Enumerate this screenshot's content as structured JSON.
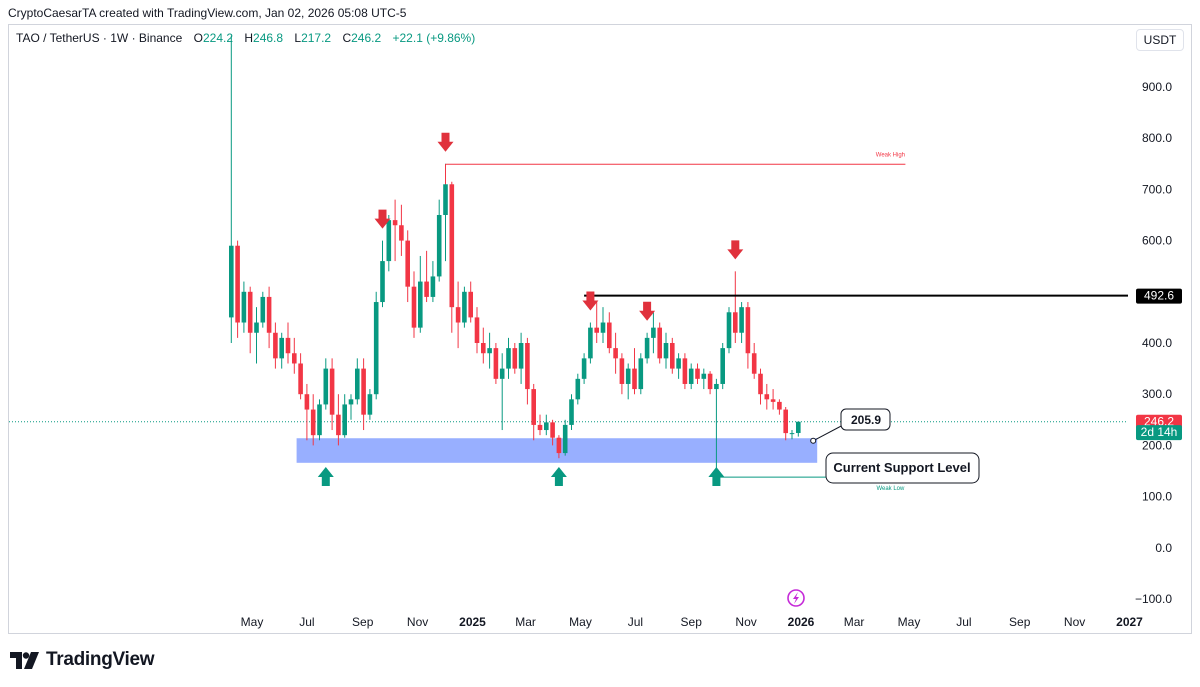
{
  "header": {
    "attribution": "CryptoCaesarTA created with TradingView.com, Jan 02, 2026 05:08 UTC-5"
  },
  "symbol_bar": {
    "symbol": "TAO / TetherUS · 1W · Binance",
    "open_label": "O",
    "open_value": "224.2",
    "high_label": "H",
    "high_value": "246.8",
    "low_label": "L",
    "low_value": "217.2",
    "close_label": "C",
    "close_value": "246.2",
    "change": "+22.1 (+9.86%)"
  },
  "currency_button": "USDT",
  "footer": {
    "brand": "TradingView"
  },
  "colors": {
    "up": "#089981",
    "down": "#f23645",
    "support_zone": "#8fa8ff",
    "resistance_line": "#000000",
    "weak_high": "#f23645",
    "weak_low": "#089981"
  },
  "chart_data": {
    "type": "candlestick",
    "price_axis": {
      "ticks": [
        {
          "label": "900.0",
          "value": 900
        },
        {
          "label": "800.0",
          "value": 800
        },
        {
          "label": "700.0",
          "value": 700
        },
        {
          "label": "600.0",
          "value": 600
        },
        {
          "label": "400.0",
          "value": 400
        },
        {
          "label": "300.0",
          "value": 300
        },
        {
          "label": "200.0",
          "value": 200
        },
        {
          "label": "100.0",
          "value": 100
        },
        {
          "label": "0.0",
          "value": 0
        },
        {
          "label": "−100.0",
          "value": -100
        }
      ],
      "badges": [
        {
          "label": "492.6",
          "value": 492.6,
          "style": "black"
        },
        {
          "label": "246.2",
          "value": 246.2,
          "style": "red"
        },
        {
          "label": "2d 14h",
          "value": 226,
          "style": "green"
        }
      ]
    },
    "time_axis": {
      "ticks": [
        {
          "label": "May",
          "date": "2024-05"
        },
        {
          "label": "Jul",
          "date": "2024-07"
        },
        {
          "label": "Sep",
          "date": "2024-09"
        },
        {
          "label": "Nov",
          "date": "2024-11"
        },
        {
          "label": "2025",
          "date": "2025-01",
          "bold": true
        },
        {
          "label": "Mar",
          "date": "2025-03"
        },
        {
          "label": "May",
          "date": "2025-05"
        },
        {
          "label": "Jul",
          "date": "2025-07"
        },
        {
          "label": "Sep",
          "date": "2025-09"
        },
        {
          "label": "Nov",
          "date": "2025-11"
        },
        {
          "label": "2026",
          "date": "2026-01",
          "bold": true
        },
        {
          "label": "Mar",
          "date": "2026-03"
        },
        {
          "label": "May",
          "date": "2026-05"
        },
        {
          "label": "Jul",
          "date": "2026-07"
        },
        {
          "label": "Sep",
          "date": "2026-09"
        },
        {
          "label": "Nov",
          "date": "2026-11"
        },
        {
          "label": "2027",
          "date": "2027-01",
          "bold": true
        }
      ]
    },
    "candles": [
      {
        "date": "2024-04-08",
        "o": 450,
        "h": 1000,
        "l": 400,
        "c": 590
      },
      {
        "date": "2024-04-15",
        "o": 590,
        "h": 600,
        "l": 410,
        "c": 440
      },
      {
        "date": "2024-04-22",
        "o": 440,
        "h": 520,
        "l": 420,
        "c": 500
      },
      {
        "date": "2024-04-29",
        "o": 500,
        "h": 510,
        "l": 380,
        "c": 420
      },
      {
        "date": "2024-05-06",
        "o": 420,
        "h": 470,
        "l": 360,
        "c": 440
      },
      {
        "date": "2024-05-13",
        "o": 440,
        "h": 500,
        "l": 430,
        "c": 490
      },
      {
        "date": "2024-05-20",
        "o": 490,
        "h": 510,
        "l": 390,
        "c": 420
      },
      {
        "date": "2024-05-27",
        "o": 420,
        "h": 440,
        "l": 350,
        "c": 370
      },
      {
        "date": "2024-06-03",
        "o": 370,
        "h": 420,
        "l": 350,
        "c": 410
      },
      {
        "date": "2024-06-10",
        "o": 410,
        "h": 440,
        "l": 360,
        "c": 380
      },
      {
        "date": "2024-06-17",
        "o": 380,
        "h": 410,
        "l": 340,
        "c": 360
      },
      {
        "date": "2024-06-24",
        "o": 360,
        "h": 380,
        "l": 290,
        "c": 300
      },
      {
        "date": "2024-07-01",
        "o": 300,
        "h": 320,
        "l": 210,
        "c": 270
      },
      {
        "date": "2024-07-08",
        "o": 270,
        "h": 300,
        "l": 200,
        "c": 220
      },
      {
        "date": "2024-07-15",
        "o": 220,
        "h": 290,
        "l": 210,
        "c": 280
      },
      {
        "date": "2024-07-22",
        "o": 280,
        "h": 370,
        "l": 270,
        "c": 350
      },
      {
        "date": "2024-07-29",
        "o": 350,
        "h": 370,
        "l": 230,
        "c": 260
      },
      {
        "date": "2024-08-05",
        "o": 260,
        "h": 300,
        "l": 200,
        "c": 220
      },
      {
        "date": "2024-08-12",
        "o": 220,
        "h": 300,
        "l": 215,
        "c": 280
      },
      {
        "date": "2024-08-19",
        "o": 280,
        "h": 300,
        "l": 250,
        "c": 290
      },
      {
        "date": "2024-08-26",
        "o": 290,
        "h": 370,
        "l": 280,
        "c": 350
      },
      {
        "date": "2024-09-02",
        "o": 350,
        "h": 370,
        "l": 230,
        "c": 260
      },
      {
        "date": "2024-09-09",
        "o": 260,
        "h": 310,
        "l": 250,
        "c": 300
      },
      {
        "date": "2024-09-16",
        "o": 300,
        "h": 500,
        "l": 290,
        "c": 480
      },
      {
        "date": "2024-09-23",
        "o": 480,
        "h": 600,
        "l": 470,
        "c": 560
      },
      {
        "date": "2024-09-30",
        "o": 560,
        "h": 650,
        "l": 540,
        "c": 640
      },
      {
        "date": "2024-10-07",
        "o": 640,
        "h": 680,
        "l": 560,
        "c": 630
      },
      {
        "date": "2024-10-14",
        "o": 630,
        "h": 670,
        "l": 570,
        "c": 600
      },
      {
        "date": "2024-10-21",
        "o": 600,
        "h": 620,
        "l": 480,
        "c": 510
      },
      {
        "date": "2024-10-28",
        "o": 510,
        "h": 540,
        "l": 410,
        "c": 430
      },
      {
        "date": "2024-11-04",
        "o": 430,
        "h": 570,
        "l": 420,
        "c": 520
      },
      {
        "date": "2024-11-11",
        "o": 520,
        "h": 580,
        "l": 480,
        "c": 490
      },
      {
        "date": "2024-11-18",
        "o": 490,
        "h": 560,
        "l": 480,
        "c": 530
      },
      {
        "date": "2024-11-25",
        "o": 530,
        "h": 680,
        "l": 520,
        "c": 650
      },
      {
        "date": "2024-12-02",
        "o": 650,
        "h": 750,
        "l": 560,
        "c": 710
      },
      {
        "date": "2024-12-09",
        "o": 710,
        "h": 715,
        "l": 420,
        "c": 470
      },
      {
        "date": "2024-12-16",
        "o": 470,
        "h": 520,
        "l": 390,
        "c": 440
      },
      {
        "date": "2024-12-23",
        "o": 440,
        "h": 510,
        "l": 430,
        "c": 500
      },
      {
        "date": "2024-12-30",
        "o": 500,
        "h": 520,
        "l": 440,
        "c": 450
      },
      {
        "date": "2025-01-06",
        "o": 450,
        "h": 470,
        "l": 380,
        "c": 400
      },
      {
        "date": "2025-01-13",
        "o": 400,
        "h": 430,
        "l": 360,
        "c": 380
      },
      {
        "date": "2025-01-20",
        "o": 380,
        "h": 420,
        "l": 350,
        "c": 390
      },
      {
        "date": "2025-01-27",
        "o": 390,
        "h": 400,
        "l": 320,
        "c": 330
      },
      {
        "date": "2025-02-03",
        "o": 330,
        "h": 380,
        "l": 230,
        "c": 350
      },
      {
        "date": "2025-02-10",
        "o": 350,
        "h": 410,
        "l": 330,
        "c": 390
      },
      {
        "date": "2025-02-17",
        "o": 390,
        "h": 400,
        "l": 340,
        "c": 350
      },
      {
        "date": "2025-02-24",
        "o": 350,
        "h": 420,
        "l": 320,
        "c": 400
      },
      {
        "date": "2025-03-03",
        "o": 400,
        "h": 410,
        "l": 280,
        "c": 310
      },
      {
        "date": "2025-03-10",
        "o": 310,
        "h": 320,
        "l": 210,
        "c": 240
      },
      {
        "date": "2025-03-17",
        "o": 240,
        "h": 260,
        "l": 220,
        "c": 230
      },
      {
        "date": "2025-03-24",
        "o": 230,
        "h": 260,
        "l": 220,
        "c": 245
      },
      {
        "date": "2025-03-31",
        "o": 245,
        "h": 250,
        "l": 200,
        "c": 215
      },
      {
        "date": "2025-04-07",
        "o": 215,
        "h": 220,
        "l": 175,
        "c": 185
      },
      {
        "date": "2025-04-14",
        "o": 185,
        "h": 250,
        "l": 180,
        "c": 240
      },
      {
        "date": "2025-04-21",
        "o": 240,
        "h": 300,
        "l": 230,
        "c": 290
      },
      {
        "date": "2025-04-28",
        "o": 290,
        "h": 340,
        "l": 280,
        "c": 330
      },
      {
        "date": "2025-05-05",
        "o": 330,
        "h": 380,
        "l": 320,
        "c": 370
      },
      {
        "date": "2025-05-12",
        "o": 370,
        "h": 440,
        "l": 360,
        "c": 430
      },
      {
        "date": "2025-05-19",
        "o": 430,
        "h": 480,
        "l": 400,
        "c": 420
      },
      {
        "date": "2025-05-26",
        "o": 420,
        "h": 470,
        "l": 400,
        "c": 440
      },
      {
        "date": "2025-06-02",
        "o": 440,
        "h": 460,
        "l": 380,
        "c": 390
      },
      {
        "date": "2025-06-09",
        "o": 390,
        "h": 420,
        "l": 340,
        "c": 370
      },
      {
        "date": "2025-06-16",
        "o": 370,
        "h": 380,
        "l": 300,
        "c": 320
      },
      {
        "date": "2025-06-23",
        "o": 320,
        "h": 360,
        "l": 290,
        "c": 350
      },
      {
        "date": "2025-06-30",
        "o": 350,
        "h": 390,
        "l": 300,
        "c": 310
      },
      {
        "date": "2025-07-07",
        "o": 310,
        "h": 380,
        "l": 300,
        "c": 370
      },
      {
        "date": "2025-07-14",
        "o": 370,
        "h": 420,
        "l": 360,
        "c": 410
      },
      {
        "date": "2025-07-21",
        "o": 410,
        "h": 460,
        "l": 380,
        "c": 430
      },
      {
        "date": "2025-07-28",
        "o": 430,
        "h": 440,
        "l": 360,
        "c": 370
      },
      {
        "date": "2025-08-04",
        "o": 370,
        "h": 420,
        "l": 350,
        "c": 400
      },
      {
        "date": "2025-08-11",
        "o": 400,
        "h": 410,
        "l": 340,
        "c": 350
      },
      {
        "date": "2025-08-18",
        "o": 350,
        "h": 380,
        "l": 330,
        "c": 370
      },
      {
        "date": "2025-08-25",
        "o": 370,
        "h": 380,
        "l": 310,
        "c": 320
      },
      {
        "date": "2025-09-01",
        "o": 320,
        "h": 360,
        "l": 310,
        "c": 350
      },
      {
        "date": "2025-09-08",
        "o": 350,
        "h": 360,
        "l": 320,
        "c": 330
      },
      {
        "date": "2025-09-15",
        "o": 330,
        "h": 350,
        "l": 310,
        "c": 340
      },
      {
        "date": "2025-09-22",
        "o": 340,
        "h": 345,
        "l": 300,
        "c": 310
      },
      {
        "date": "2025-09-29",
        "o": 310,
        "h": 330,
        "l": 140,
        "c": 320
      },
      {
        "date": "2025-10-06",
        "o": 320,
        "h": 400,
        "l": 310,
        "c": 390
      },
      {
        "date": "2025-10-13",
        "o": 390,
        "h": 470,
        "l": 380,
        "c": 460
      },
      {
        "date": "2025-10-20",
        "o": 460,
        "h": 540,
        "l": 400,
        "c": 420
      },
      {
        "date": "2025-10-27",
        "o": 420,
        "h": 480,
        "l": 400,
        "c": 470
      },
      {
        "date": "2025-11-03",
        "o": 470,
        "h": 480,
        "l": 350,
        "c": 380
      },
      {
        "date": "2025-11-10",
        "o": 380,
        "h": 400,
        "l": 330,
        "c": 340
      },
      {
        "date": "2025-11-17",
        "o": 340,
        "h": 350,
        "l": 280,
        "c": 300
      },
      {
        "date": "2025-11-24",
        "o": 300,
        "h": 320,
        "l": 270,
        "c": 290
      },
      {
        "date": "2025-12-01",
        "o": 290,
        "h": 310,
        "l": 270,
        "c": 285
      },
      {
        "date": "2025-12-08",
        "o": 285,
        "h": 290,
        "l": 260,
        "c": 270
      },
      {
        "date": "2025-12-15",
        "o": 270,
        "h": 275,
        "l": 210,
        "c": 224
      },
      {
        "date": "2025-12-22",
        "o": 224,
        "h": 230,
        "l": 212,
        "c": 224
      },
      {
        "date": "2025-12-29",
        "o": 224.2,
        "h": 246.8,
        "l": 217.2,
        "c": 246.2
      }
    ],
    "current_price_line": 246.2,
    "annotations": {
      "support_zone": {
        "from_date": "2024-06-24",
        "to_date": "2026-01-19",
        "low": 166,
        "high": 214
      },
      "resistance_line": {
        "from_date": "2025-05-05",
        "value": 492.6
      },
      "weak_high": {
        "from_date": "2024-12-02",
        "to_date": "2026-04-27",
        "value": 749,
        "label": "Weak High"
      },
      "weak_low": {
        "from_date": "2025-09-29",
        "to_date": "2026-04-27",
        "value": 138,
        "label": "Weak Low"
      },
      "sell_arrows": [
        "2024-09-23",
        "2024-12-02",
        "2025-05-12",
        "2025-07-14",
        "2025-10-20"
      ],
      "buy_arrows": [
        "2024-07-22",
        "2025-04-07",
        "2025-09-29"
      ],
      "callout": {
        "date": "2026-01-19",
        "value": 209,
        "label": "205.9"
      },
      "text_box": {
        "date": "2026-03-01",
        "value": 163,
        "label": "Current Support Level"
      }
    }
  }
}
